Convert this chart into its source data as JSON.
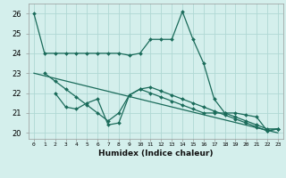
{
  "title": "",
  "xlabel": "Humidex (Indice chaleur)",
  "ylabel": "",
  "background_color": "#d4efec",
  "grid_color": "#b0d8d4",
  "line_color": "#1a6b5a",
  "xlim": [
    -0.5,
    23.5
  ],
  "ylim": [
    19.7,
    26.5
  ],
  "yticks": [
    20,
    21,
    22,
    23,
    24,
    25,
    26
  ],
  "xtick_labels": [
    "0",
    "1",
    "2",
    "3",
    "4",
    "5",
    "6",
    "7",
    "8",
    "9",
    "10",
    "11",
    "12",
    "13",
    "14",
    "15",
    "16",
    "17",
    "18",
    "19",
    "20",
    "21",
    "22",
    "23"
  ],
  "series": [
    {
      "x": [
        0,
        1,
        2,
        3,
        4,
        5,
        6,
        7,
        8,
        9,
        10,
        11,
        12,
        13,
        14,
        15,
        16,
        17,
        18,
        19,
        20,
        21,
        22,
        23
      ],
      "y": [
        26.0,
        24.0,
        24.0,
        24.0,
        24.0,
        24.0,
        24.0,
        24.0,
        24.0,
        23.9,
        24.0,
        24.7,
        24.7,
        24.7,
        26.1,
        24.7,
        23.5,
        21.7,
        21.0,
        21.0,
        20.9,
        20.8,
        20.1,
        20.2
      ],
      "marker": "D",
      "markersize": 2.0
    },
    {
      "x": [
        1,
        2,
        3,
        4,
        5,
        6,
        7,
        8,
        9,
        10,
        11,
        12,
        13,
        14,
        15,
        16,
        17,
        18,
        19,
        20,
        21,
        22,
        23
      ],
      "y": [
        23.0,
        22.6,
        22.2,
        21.8,
        21.4,
        21.0,
        20.6,
        21.0,
        21.9,
        22.2,
        22.3,
        22.1,
        21.9,
        21.7,
        21.5,
        21.3,
        21.1,
        20.9,
        20.7,
        20.5,
        20.3,
        20.1,
        20.2
      ],
      "marker": "D",
      "markersize": 2.0
    },
    {
      "x": [
        2,
        3,
        4,
        5,
        6,
        7,
        8,
        9,
        10,
        11,
        12,
        13,
        14,
        15,
        16,
        17,
        18,
        19,
        20,
        21,
        22,
        23
      ],
      "y": [
        22.0,
        21.3,
        21.2,
        21.5,
        21.7,
        20.4,
        20.5,
        21.9,
        22.2,
        22.0,
        21.8,
        21.6,
        21.4,
        21.2,
        21.0,
        21.0,
        21.0,
        20.8,
        20.6,
        20.4,
        20.2,
        20.2
      ],
      "marker": "D",
      "markersize": 2.0
    },
    {
      "x": [
        0,
        23
      ],
      "y": [
        23.0,
        20.0
      ],
      "marker": null,
      "markersize": 0
    }
  ]
}
